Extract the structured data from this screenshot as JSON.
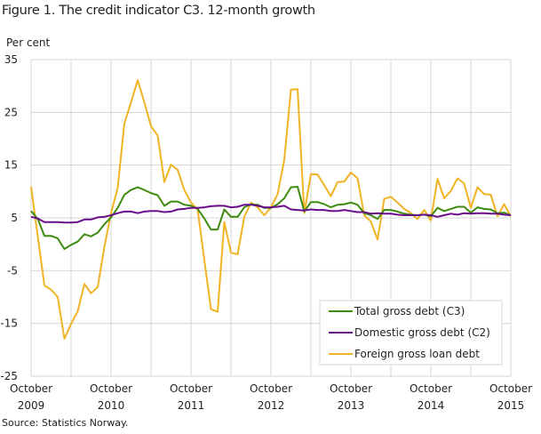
{
  "chart_data": {
    "type": "line",
    "title": "Figure 1. The credit indicator C3. 12-month growth",
    "ylabel": "Per cent",
    "xlabel": "",
    "source": "Source: Statistics Norway.",
    "ylim": [
      -25,
      35
    ],
    "yticks": [
      35,
      25,
      15,
      5,
      -5,
      -15,
      -25
    ],
    "ytick_labels": [
      "35",
      "25",
      "15",
      "5",
      "-5",
      "-15",
      "-25"
    ],
    "x_start": "October 2009",
    "x_end": "October 2015",
    "x_frequency": "monthly",
    "xtick_labels": [
      {
        "month": "October",
        "year": "2009"
      },
      {
        "month": "October",
        "year": "2010"
      },
      {
        "month": "October",
        "year": "2011"
      },
      {
        "month": "October",
        "year": "2012"
      },
      {
        "month": "October",
        "year": "2013"
      },
      {
        "month": "October",
        "year": "2014"
      },
      {
        "month": "October",
        "year": "2015"
      }
    ],
    "grid": true,
    "legend_placement": "bottom-right",
    "series": [
      {
        "name": "Total gross debt (C3)",
        "color": "#3d8b0f",
        "values": [
          6.3,
          4.8,
          1.6,
          1.6,
          1.1,
          -0.9,
          -0.1,
          0.5,
          1.9,
          1.5,
          2.2,
          3.8,
          5.1,
          6.9,
          9.4,
          10.3,
          10.8,
          10.3,
          9.7,
          9.3,
          7.3,
          8.1,
          8.1,
          7.5,
          7.3,
          6.7,
          4.9,
          2.8,
          2.8,
          6.6,
          5.2,
          5.2,
          7.0,
          7.6,
          7.5,
          6.9,
          6.9,
          7.6,
          8.7,
          10.8,
          10.9,
          6.2,
          8.0,
          8.0,
          7.6,
          7.0,
          7.5,
          7.6,
          7.9,
          7.5,
          5.9,
          5.5,
          4.8,
          6.5,
          6.5,
          6.2,
          5.8,
          5.6,
          5.5,
          5.6,
          5.3,
          6.9,
          6.3,
          6.7,
          7.1,
          7.1,
          6.0,
          7.0,
          6.7,
          6.6,
          5.9,
          6.0,
          5.5
        ]
      },
      {
        "name": "Domestic gross debt (C2)",
        "color": "#6a0d8a",
        "values": [
          5.2,
          4.9,
          4.2,
          4.2,
          4.2,
          4.1,
          4.1,
          4.2,
          4.7,
          4.7,
          5.1,
          5.2,
          5.5,
          5.9,
          6.2,
          6.2,
          5.9,
          6.2,
          6.3,
          6.3,
          6.1,
          6.2,
          6.6,
          6.7,
          6.9,
          6.9,
          7.0,
          7.2,
          7.3,
          7.3,
          7.0,
          7.1,
          7.5,
          7.5,
          7.3,
          7.0,
          7.0,
          7.1,
          7.3,
          6.6,
          6.5,
          6.4,
          6.6,
          6.5,
          6.5,
          6.3,
          6.3,
          6.5,
          6.3,
          6.1,
          6.1,
          5.8,
          5.9,
          5.8,
          5.8,
          5.6,
          5.5,
          5.5,
          5.5,
          5.6,
          5.5,
          5.2,
          5.5,
          5.8,
          5.6,
          5.9,
          5.8,
          5.9,
          5.9,
          5.8,
          5.8,
          5.6,
          5.5
        ]
      },
      {
        "name": "Foreign gross loan debt",
        "color": "#f0b323",
        "values": [
          10.9,
          1.5,
          -7.8,
          -8.6,
          -10.0,
          -17.9,
          -15.1,
          -12.7,
          -7.5,
          -9.3,
          -8.1,
          -0.5,
          5.9,
          10.7,
          22.9,
          26.9,
          31.1,
          26.9,
          22.4,
          20.6,
          11.8,
          15.1,
          14.1,
          10.3,
          7.9,
          6.6,
          -3.0,
          -12.3,
          -12.8,
          4.2,
          -1.6,
          -1.9,
          5.2,
          7.9,
          7.0,
          5.5,
          7.0,
          9.5,
          16.0,
          29.3,
          29.4,
          5.9,
          13.3,
          13.2,
          11.2,
          9.1,
          11.8,
          11.9,
          13.6,
          12.5,
          5.5,
          4.3,
          0.9,
          8.6,
          9.0,
          7.9,
          6.7,
          5.9,
          4.8,
          6.5,
          4.5,
          12.4,
          8.7,
          10.1,
          12.5,
          11.5,
          6.9,
          10.8,
          9.5,
          9.4,
          5.3,
          7.6,
          5.3
        ]
      }
    ]
  }
}
